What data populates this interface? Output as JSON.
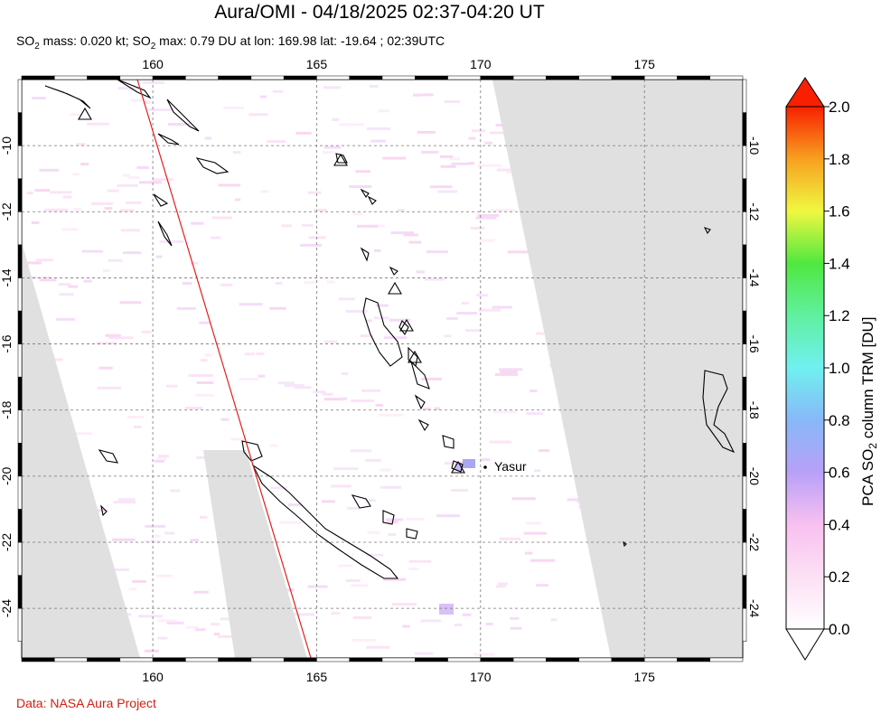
{
  "title": "Aura/OMI - 04/18/2025 02:37-04:20 UT",
  "subtitle_parts": {
    "a": "SO",
    "a_sub": "2",
    "b": " mass: 0.020 kt; SO",
    "b_sub": "2",
    "c": " max: 0.79 DU at lon: 169.98 lat: -19.64 ; 02:39UTC"
  },
  "credit": "Data: NASA Aura Project",
  "map": {
    "lon_range": [
      156,
      178
    ],
    "lat_range": [
      -25.5,
      -8
    ],
    "lon_ticks": [
      160,
      165,
      170,
      175
    ],
    "lat_ticks": [
      -10,
      -12,
      -14,
      -16,
      -18,
      -20,
      -22,
      -24
    ],
    "lon_tick_labels": [
      "160",
      "165",
      "170",
      "175"
    ],
    "lat_tick_labels": [
      "-10",
      "-12",
      "-14",
      "-16",
      "-18",
      "-20",
      "-22",
      "-24"
    ],
    "grid": true,
    "volcano_label": "Yasur",
    "no_data_color": "#e0e0e0",
    "orbit_track_color": "#e02020"
  },
  "colorbar": {
    "label_parts": {
      "a": "PCA SO",
      "a_sub": "2",
      "b": " column TRM [DU]"
    },
    "ticks": [
      "0.0",
      "0.2",
      "0.4",
      "0.6",
      "0.8",
      "1.0",
      "1.2",
      "1.4",
      "1.6",
      "1.8",
      "2.0"
    ],
    "min": 0.0,
    "max": 2.0,
    "colors": [
      "#ffffff",
      "#f8c8f0",
      "#d8a8f8",
      "#9090f8",
      "#80d8f8",
      "#70f8e0",
      "#60f080",
      "#a8f840",
      "#f8f840",
      "#f89820",
      "#f82000",
      "#e00000"
    ]
  }
}
